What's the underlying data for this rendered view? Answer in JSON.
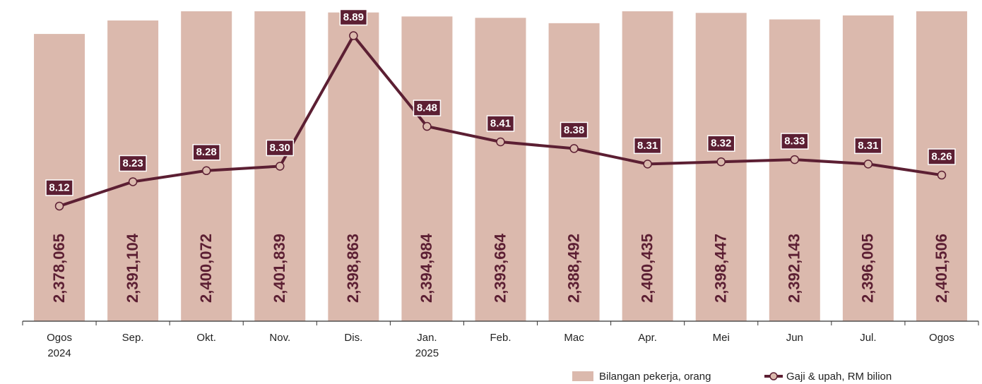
{
  "chart_data": {
    "type": "bar-line",
    "categories": [
      [
        "Ogos",
        "2024"
      ],
      [
        "Sep."
      ],
      [
        "Okt."
      ],
      [
        "Nov."
      ],
      [
        "Dis."
      ],
      [
        "Jan.",
        "2025"
      ],
      [
        "Feb."
      ],
      [
        "Mac"
      ],
      [
        "Apr."
      ],
      [
        "Mei"
      ],
      [
        "Jun"
      ],
      [
        "Jul."
      ],
      [
        "Ogos"
      ]
    ],
    "ylim": [
      2100000,
      2400000
    ],
    "y2lim": [
      7.6,
      9.0
    ],
    "legend": "bottom",
    "series": [
      {
        "name": "Bilangan pekerja, orang",
        "type": "bar",
        "color": "#dbb9ad",
        "values": [
          2378065,
          2391104,
          2400072,
          2401839,
          2398863,
          2394984,
          2393664,
          2388492,
          2400435,
          2398447,
          2392143,
          2396005,
          2401506
        ],
        "value_labels": [
          "2,378,065",
          "2,391,104",
          "2,400,072",
          "2,401,839",
          "2,398,863",
          "2,394,984",
          "2,393,664",
          "2,388,492",
          "2,400,435",
          "2,398,447",
          "2,392,143",
          "2,396,005",
          "2,401,506"
        ]
      },
      {
        "name": "Gaji & upah, RM bilion",
        "type": "line",
        "axis": "y2",
        "color": "#5c1f33",
        "values": [
          8.12,
          8.23,
          8.28,
          8.3,
          8.89,
          8.48,
          8.41,
          8.38,
          8.31,
          8.32,
          8.33,
          8.31,
          8.26
        ],
        "value_labels": [
          "8.12",
          "8.23",
          "8.28",
          "8.30",
          "8.89",
          "8.48",
          "8.41",
          "8.38",
          "8.31",
          "8.32",
          "8.33",
          "8.31",
          "8.26"
        ]
      }
    ]
  }
}
